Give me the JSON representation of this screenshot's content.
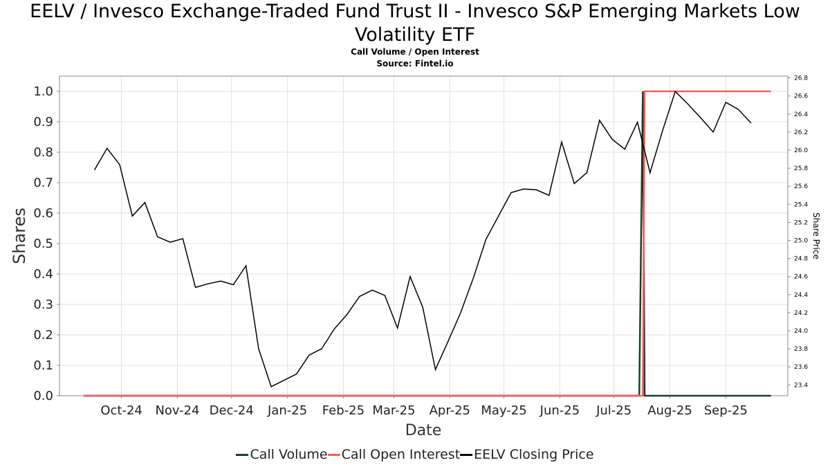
{
  "header": {
    "title_line1": "EELV / Invesco Exchange-Traded Fund Trust II - Invesco S&P Emerging Markets Low",
    "title_line2": "Volatility ETF",
    "subtitle": "Call Volume / Open Interest",
    "source": "Source: Fintel.io"
  },
  "chart_data": {
    "type": "line",
    "xlabel": "Date",
    "ylabel": "Shares",
    "y2label": "Share Price",
    "ylim": [
      0,
      1.0
    ],
    "yticks": [
      "0.0",
      "0.1",
      "0.2",
      "0.3",
      "0.4",
      "0.5",
      "0.6",
      "0.7",
      "0.8",
      "0.9",
      "1.0"
    ],
    "y2lim": [
      23.28,
      26.82
    ],
    "y2ticks": [
      "23.4",
      "23.6",
      "23.8",
      "24.0",
      "24.2",
      "24.4",
      "24.6",
      "24.8",
      "25.0",
      "25.2",
      "25.4",
      "25.6",
      "25.8",
      "26.0",
      "26.2",
      "26.4",
      "26.6",
      "26.8"
    ],
    "x_tick_labels": [
      "Oct-24",
      "Nov-24",
      "Dec-24",
      "Jan-25",
      "Feb-25",
      "Mar-25",
      "Apr-25",
      "May-25",
      "Jun-25",
      "Jul-25",
      "Aug-25",
      "Sep-25"
    ],
    "x_tick_dates": [
      "2024-10-01",
      "2024-11-01",
      "2024-12-01",
      "2025-01-01",
      "2025-02-01",
      "2025-03-01",
      "2025-04-01",
      "2025-05-01",
      "2025-06-01",
      "2025-07-01",
      "2025-08-01",
      "2025-09-01"
    ],
    "grid": true,
    "legend_position": "bottom-center",
    "series": [
      {
        "name": "Call Volume",
        "color": "#1a3d28",
        "axis": "left",
        "x": [
          "2024-09-10",
          "2025-07-15",
          "2025-07-17",
          "2025-07-18",
          "2025-09-26"
        ],
        "y": [
          0,
          0,
          1,
          0,
          0
        ]
      },
      {
        "name": "Call Open Interest",
        "color": "#ff5a5a",
        "axis": "left",
        "x": [
          "2024-09-10",
          "2025-07-17",
          "2025-07-18",
          "2025-09-26"
        ],
        "y": [
          0,
          0,
          1,
          1
        ]
      },
      {
        "name": "EELV Closing Price",
        "color": "#000000",
        "axis": "right",
        "x": [
          "2024-09-16",
          "2024-09-23",
          "2024-09-30",
          "2024-10-07",
          "2024-10-14",
          "2024-10-21",
          "2024-10-28",
          "2024-11-04",
          "2024-11-11",
          "2024-11-18",
          "2024-11-25",
          "2024-12-02",
          "2024-12-09",
          "2024-12-16",
          "2024-12-23",
          "2025-01-06",
          "2025-01-13",
          "2025-01-20",
          "2025-01-27",
          "2025-02-03",
          "2025-02-10",
          "2025-02-17",
          "2025-02-24",
          "2025-03-03",
          "2025-03-10",
          "2025-03-17",
          "2025-03-24",
          "2025-03-31",
          "2025-04-07",
          "2025-04-14",
          "2025-04-21",
          "2025-04-28",
          "2025-05-05",
          "2025-05-12",
          "2025-05-19",
          "2025-05-26",
          "2025-06-02",
          "2025-06-09",
          "2025-06-16",
          "2025-06-23",
          "2025-06-30",
          "2025-07-07",
          "2025-07-14",
          "2025-07-21",
          "2025-07-28",
          "2025-08-04",
          "2025-08-11",
          "2025-08-18",
          "2025-08-25",
          "2025-09-01",
          "2025-09-08",
          "2025-09-15"
        ],
        "y": [
          25.78,
          26.02,
          25.84,
          25.27,
          25.42,
          25.04,
          24.98,
          25.02,
          24.48,
          24.52,
          24.55,
          24.51,
          24.72,
          23.8,
          23.38,
          23.52,
          23.73,
          23.8,
          24.02,
          24.18,
          24.38,
          24.45,
          24.39,
          24.03,
          24.6,
          24.26,
          23.57,
          23.88,
          24.2,
          24.58,
          25.01,
          25.27,
          25.53,
          25.57,
          25.56,
          25.5,
          26.09,
          25.63,
          25.75,
          26.33,
          26.12,
          26.01,
          26.31,
          25.75,
          26.22,
          26.65,
          26.51,
          26.36,
          26.2,
          26.53,
          26.45,
          26.3
        ]
      }
    ]
  },
  "legend": {
    "items": [
      {
        "label": "Call Volume",
        "color": "#1a3d28"
      },
      {
        "label": "Call Open Interest",
        "color": "#ff5a5a"
      },
      {
        "label": "EELV Closing Price",
        "color": "#000000"
      }
    ]
  }
}
